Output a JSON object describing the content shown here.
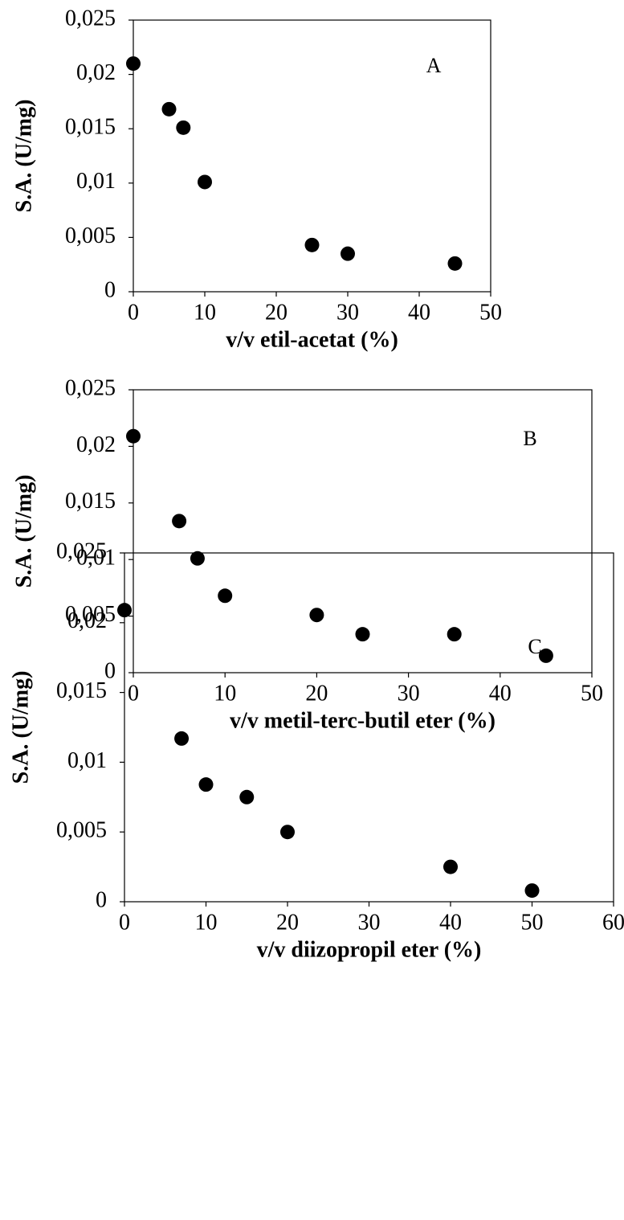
{
  "chart_data": [
    {
      "type": "scatter",
      "annotation": "A",
      "xlabel": "v/v etil-acetat (%)",
      "ylabel": "S.A. (U/mg)",
      "color": "#000000",
      "x": [
        0,
        5,
        7,
        10,
        25,
        30,
        45
      ],
      "values": [
        0.021,
        0.0168,
        0.0151,
        0.0101,
        0.0043,
        0.0035,
        0.0026
      ],
      "xlim": [
        0,
        50
      ],
      "ylim": [
        0,
        0.025
      ],
      "xticks": [
        0,
        10,
        20,
        30,
        40,
        50
      ],
      "yticks": [
        0,
        {
          "value": 0.005,
          "label": "0,005"
        },
        {
          "value": 0.01,
          "label": "0,01"
        },
        {
          "value": 0.015,
          "label": "0,015"
        },
        {
          "value": 0.02,
          "label": "0,02"
        },
        {
          "value": 0.025,
          "label": "0,025"
        }
      ]
    },
    {
      "type": "scatter",
      "annotation": "B",
      "xlabel": "v/v metil-terc-butil eter (%)",
      "ylabel": "S.A. (U/mg)",
      "color": "#000000",
      "x": [
        0,
        5,
        7,
        10,
        20,
        25,
        35,
        45
      ],
      "values": [
        0.0209,
        0.0134,
        0.0101,
        0.0068,
        0.0051,
        0.0034,
        0.0034,
        0.0015
      ],
      "xlim": [
        0,
        50
      ],
      "ylim": [
        0,
        0.025
      ],
      "xticks": [
        0,
        10,
        20,
        30,
        40,
        50
      ],
      "yticks": [
        0,
        {
          "value": 0.005,
          "label": "0,005"
        },
        {
          "value": 0.01,
          "label": "0,01"
        },
        {
          "value": 0.015,
          "label": "0,015"
        },
        {
          "value": 0.02,
          "label": "0,02"
        },
        {
          "value": 0.025,
          "label": "0,025"
        }
      ]
    },
    {
      "type": "scatter",
      "annotation": "C",
      "xlabel": "v/v diizopropil eter (%)",
      "ylabel": "S.A. (U/mg)",
      "color": "#000000",
      "x": [
        0,
        7,
        10,
        15,
        20,
        40,
        50
      ],
      "values": [
        0.0209,
        0.0117,
        0.0084,
        0.0075,
        0.005,
        0.0025,
        0.0008
      ],
      "xlim": [
        0,
        60
      ],
      "ylim": [
        0,
        0.025
      ],
      "xticks": [
        0,
        10,
        20,
        30,
        40,
        50,
        60
      ],
      "yticks": [
        0,
        {
          "value": 0.005,
          "label": "0,005"
        },
        {
          "value": 0.01,
          "label": "0,01"
        },
        {
          "value": 0.015,
          "label": "0,015"
        },
        {
          "value": 0.02,
          "label": "0,02"
        },
        {
          "value": 0.025,
          "label": "0,025"
        }
      ]
    }
  ]
}
